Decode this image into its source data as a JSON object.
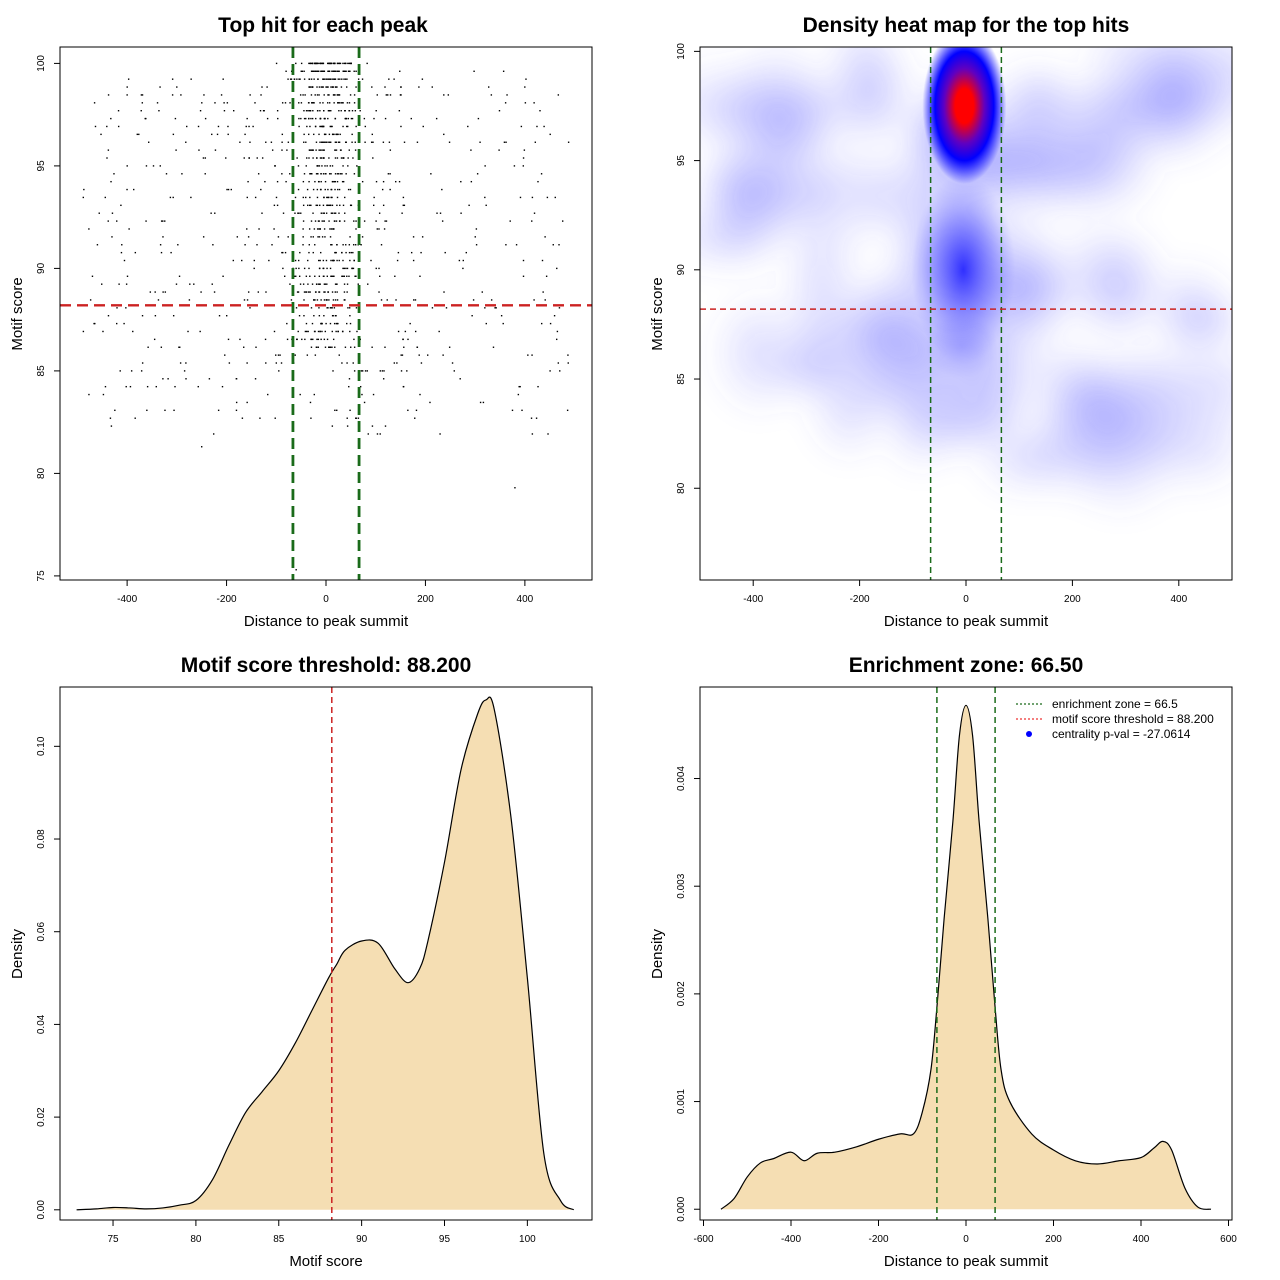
{
  "chart_data": [
    {
      "type": "scatter",
      "title": "Top hit for each peak",
      "xlabel": "Distance to peak summit",
      "ylabel": "Motif score",
      "xlim": [
        -535,
        535
      ],
      "ylim": [
        74.8,
        100.8
      ],
      "xticks": [
        -400,
        -200,
        0,
        200,
        400
      ],
      "yticks": [
        75,
        80,
        85,
        90,
        95,
        100
      ],
      "xtick_labels": [
        "-400",
        "-200",
        "0",
        "200",
        "400"
      ],
      "ytick_labels": [
        "75",
        "80",
        "85",
        "90",
        "95",
        "100"
      ],
      "vlines": [
        -66.5,
        66.5
      ],
      "hline": 88.2,
      "colors": {
        "points": "#000000",
        "vline": "#1a6b1a",
        "hline": "#cc2222"
      },
      "points_summary": "dense cluster near 0 with scores 86-100; scattered background between -490 and 490"
    },
    {
      "type": "heatmap",
      "title": "Density heat map for the top hits",
      "xlabel": "Distance to peak summit",
      "ylabel": "Motif score",
      "xlim": [
        -500,
        500
      ],
      "ylim": [
        75.8,
        100.2
      ],
      "xticks": [
        -400,
        -200,
        0,
        200,
        400
      ],
      "yticks": [
        80,
        85,
        90,
        95,
        100
      ],
      "xtick_labels": [
        "-400",
        "-200",
        "0",
        "200",
        "400"
      ],
      "ytick_labels": [
        "80",
        "85",
        "90",
        "95",
        "100"
      ],
      "peak": {
        "x": -3,
        "y": 97.5
      },
      "vlines": [
        -66.5,
        66.5
      ],
      "hline": 88.2,
      "colors": {
        "low": "#ffffff",
        "mid": "#0000ff",
        "high": "#ff0000"
      }
    },
    {
      "type": "area",
      "title": "Motif score threshold: 88.200",
      "xlabel": "Motif score",
      "ylabel": "Density",
      "xlim": [
        71.8,
        103.9
      ],
      "ylim": [
        -0.0022,
        0.1128
      ],
      "xticks": [
        75,
        80,
        85,
        90,
        95,
        100
      ],
      "yticks": [
        0,
        0.02,
        0.04,
        0.06,
        0.08,
        0.1
      ],
      "xtick_labels": [
        "75",
        "80",
        "85",
        "90",
        "95",
        "100"
      ],
      "ytick_labels": [
        "0.00",
        "0.02",
        "0.04",
        "0.06",
        "0.08",
        "0.10"
      ],
      "x": [
        72.8,
        74,
        75,
        76,
        77,
        78,
        79,
        80,
        81,
        82,
        83,
        84,
        85,
        86,
        87,
        88,
        88.5,
        89,
        90,
        91,
        92,
        92.8,
        93.5,
        94,
        95,
        96,
        97,
        97.5,
        98,
        99,
        100,
        101,
        102,
        102.8
      ],
      "y": [
        0,
        0.0002,
        0.0005,
        0.0004,
        0.0002,
        0.0004,
        0.001,
        0.002,
        0.0065,
        0.014,
        0.021,
        0.0255,
        0.03,
        0.036,
        0.043,
        0.05,
        0.053,
        0.056,
        0.058,
        0.0575,
        0.052,
        0.049,
        0.052,
        0.058,
        0.075,
        0.095,
        0.107,
        0.11,
        0.108,
        0.085,
        0.05,
        0.012,
        0.002,
        0
      ],
      "vline": 88.2,
      "colors": {
        "fill": "#f5deb3",
        "line": "#000000",
        "vline": "#cc2222"
      }
    },
    {
      "type": "area",
      "title": "Enrichment zone: 66.50",
      "xlabel": "Distance to peak summit",
      "ylabel": "Density",
      "xlim": [
        -608,
        608
      ],
      "ylim": [
        -0.0001,
        0.00485
      ],
      "xticks": [
        -600,
        -400,
        -200,
        0,
        200,
        400,
        600
      ],
      "yticks": [
        0,
        0.001,
        0.002,
        0.003,
        0.004
      ],
      "xtick_labels": [
        "-600",
        "-400",
        "-200",
        "0",
        "200",
        "400",
        "600"
      ],
      "ytick_labels": [
        "0.000",
        "0.001",
        "0.002",
        "0.003",
        "0.004"
      ],
      "x": [
        -560,
        -530,
        -500,
        -470,
        -440,
        -400,
        -370,
        -340,
        -300,
        -250,
        -200,
        -150,
        -120,
        -100,
        -80,
        -66,
        -50,
        -30,
        -15,
        0,
        15,
        30,
        50,
        66,
        80,
        100,
        150,
        200,
        250,
        300,
        350,
        400,
        430,
        450,
        470,
        500,
        530,
        560
      ],
      "y": [
        0,
        0.0001,
        0.0003,
        0.00043,
        0.00047,
        0.00053,
        0.00045,
        0.00052,
        0.00053,
        0.00058,
        0.00065,
        0.0007,
        0.0007,
        0.0009,
        0.0013,
        0.0019,
        0.0027,
        0.0036,
        0.0044,
        0.00468,
        0.0044,
        0.0036,
        0.0027,
        0.0019,
        0.0013,
        0.001,
        0.0007,
        0.00055,
        0.00045,
        0.00042,
        0.00045,
        0.00048,
        0.00057,
        0.00063,
        0.00055,
        0.0002,
        2e-05,
        0
      ],
      "vlines": [
        -66.5,
        66.5
      ],
      "legend_position": "top-right",
      "legend": [
        {
          "label": "enrichment zone = 66.5",
          "color": "#1a6b1a",
          "style": "dotted line"
        },
        {
          "label": "motif score threshold = 88.200",
          "color": "#ee3333",
          "style": "dotted line"
        },
        {
          "label": "centrality p-val = -27.0614",
          "color": "#0000ff",
          "style": "dot"
        }
      ],
      "colors": {
        "fill": "#f5deb3",
        "line": "#000000",
        "vline": "#1a6b1a"
      }
    }
  ]
}
